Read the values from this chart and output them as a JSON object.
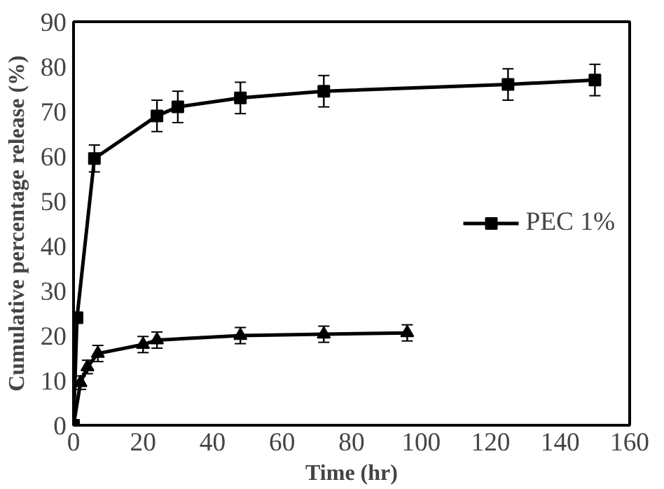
{
  "chart_data": {
    "type": "line",
    "xlabel": "Time (hr)",
    "ylabel": "Cumulative percentage release (%)",
    "xlim": [
      0,
      160
    ],
    "xticks": [
      0,
      20,
      40,
      60,
      80,
      100,
      120,
      140,
      160
    ],
    "ylim": [
      0,
      90
    ],
    "yticks": [
      0,
      10,
      20,
      30,
      40,
      50,
      60,
      70,
      80,
      90
    ],
    "grid": false,
    "legend": "right",
    "line_style": "solid",
    "series": [
      {
        "name": "PEC 1%",
        "color": "#000000",
        "marker": "square",
        "x": [
          0,
          1,
          6,
          24,
          30,
          48,
          72,
          125,
          150
        ],
        "values": [
          0,
          24,
          59.5,
          69,
          71,
          73,
          74.5,
          76,
          77
        ],
        "errors": [
          null,
          null,
          3,
          3.5,
          3.5,
          3.5,
          3.5,
          3.5,
          3.5
        ]
      },
      {
        "color": "#000000",
        "marker": "triangle",
        "x": [
          0,
          2,
          4,
          7,
          20,
          24,
          48,
          72,
          96
        ],
        "values": [
          0,
          9.5,
          13,
          16,
          18,
          19,
          20,
          20.3,
          20.6
        ],
        "errors": [
          null,
          1.5,
          1.5,
          1.8,
          1.8,
          1.8,
          1.8,
          1.8,
          1.8
        ]
      }
    ]
  }
}
